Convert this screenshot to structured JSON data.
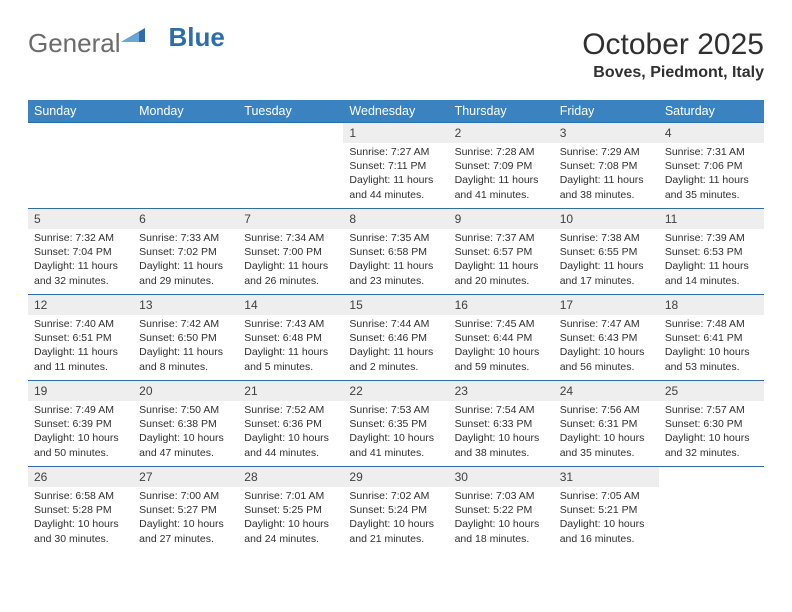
{
  "logo": {
    "text_gray": "General",
    "text_blue": "Blue"
  },
  "title": "October 2025",
  "subtitle": "Boves, Piedmont, Italy",
  "colors": {
    "header_bg": "#3b83c0",
    "header_text": "#ffffff",
    "border": "#2f6da8",
    "daynum_bg": "#eeeeee",
    "logo_gray": "#6b6b6b",
    "logo_blue": "#2f6da8"
  },
  "day_headers": [
    "Sunday",
    "Monday",
    "Tuesday",
    "Wednesday",
    "Thursday",
    "Friday",
    "Saturday"
  ],
  "weeks": [
    [
      {
        "empty": true
      },
      {
        "empty": true
      },
      {
        "empty": true
      },
      {
        "num": "1",
        "sunrise": "7:27 AM",
        "sunset": "7:11 PM",
        "daylight": "11 hours and 44 minutes."
      },
      {
        "num": "2",
        "sunrise": "7:28 AM",
        "sunset": "7:09 PM",
        "daylight": "11 hours and 41 minutes."
      },
      {
        "num": "3",
        "sunrise": "7:29 AM",
        "sunset": "7:08 PM",
        "daylight": "11 hours and 38 minutes."
      },
      {
        "num": "4",
        "sunrise": "7:31 AM",
        "sunset": "7:06 PM",
        "daylight": "11 hours and 35 minutes."
      }
    ],
    [
      {
        "num": "5",
        "sunrise": "7:32 AM",
        "sunset": "7:04 PM",
        "daylight": "11 hours and 32 minutes."
      },
      {
        "num": "6",
        "sunrise": "7:33 AM",
        "sunset": "7:02 PM",
        "daylight": "11 hours and 29 minutes."
      },
      {
        "num": "7",
        "sunrise": "7:34 AM",
        "sunset": "7:00 PM",
        "daylight": "11 hours and 26 minutes."
      },
      {
        "num": "8",
        "sunrise": "7:35 AM",
        "sunset": "6:58 PM",
        "daylight": "11 hours and 23 minutes."
      },
      {
        "num": "9",
        "sunrise": "7:37 AM",
        "sunset": "6:57 PM",
        "daylight": "11 hours and 20 minutes."
      },
      {
        "num": "10",
        "sunrise": "7:38 AM",
        "sunset": "6:55 PM",
        "daylight": "11 hours and 17 minutes."
      },
      {
        "num": "11",
        "sunrise": "7:39 AM",
        "sunset": "6:53 PM",
        "daylight": "11 hours and 14 minutes."
      }
    ],
    [
      {
        "num": "12",
        "sunrise": "7:40 AM",
        "sunset": "6:51 PM",
        "daylight": "11 hours and 11 minutes."
      },
      {
        "num": "13",
        "sunrise": "7:42 AM",
        "sunset": "6:50 PM",
        "daylight": "11 hours and 8 minutes."
      },
      {
        "num": "14",
        "sunrise": "7:43 AM",
        "sunset": "6:48 PM",
        "daylight": "11 hours and 5 minutes."
      },
      {
        "num": "15",
        "sunrise": "7:44 AM",
        "sunset": "6:46 PM",
        "daylight": "11 hours and 2 minutes."
      },
      {
        "num": "16",
        "sunrise": "7:45 AM",
        "sunset": "6:44 PM",
        "daylight": "10 hours and 59 minutes."
      },
      {
        "num": "17",
        "sunrise": "7:47 AM",
        "sunset": "6:43 PM",
        "daylight": "10 hours and 56 minutes."
      },
      {
        "num": "18",
        "sunrise": "7:48 AM",
        "sunset": "6:41 PM",
        "daylight": "10 hours and 53 minutes."
      }
    ],
    [
      {
        "num": "19",
        "sunrise": "7:49 AM",
        "sunset": "6:39 PM",
        "daylight": "10 hours and 50 minutes."
      },
      {
        "num": "20",
        "sunrise": "7:50 AM",
        "sunset": "6:38 PM",
        "daylight": "10 hours and 47 minutes."
      },
      {
        "num": "21",
        "sunrise": "7:52 AM",
        "sunset": "6:36 PM",
        "daylight": "10 hours and 44 minutes."
      },
      {
        "num": "22",
        "sunrise": "7:53 AM",
        "sunset": "6:35 PM",
        "daylight": "10 hours and 41 minutes."
      },
      {
        "num": "23",
        "sunrise": "7:54 AM",
        "sunset": "6:33 PM",
        "daylight": "10 hours and 38 minutes."
      },
      {
        "num": "24",
        "sunrise": "7:56 AM",
        "sunset": "6:31 PM",
        "daylight": "10 hours and 35 minutes."
      },
      {
        "num": "25",
        "sunrise": "7:57 AM",
        "sunset": "6:30 PM",
        "daylight": "10 hours and 32 minutes."
      }
    ],
    [
      {
        "num": "26",
        "sunrise": "6:58 AM",
        "sunset": "5:28 PM",
        "daylight": "10 hours and 30 minutes."
      },
      {
        "num": "27",
        "sunrise": "7:00 AM",
        "sunset": "5:27 PM",
        "daylight": "10 hours and 27 minutes."
      },
      {
        "num": "28",
        "sunrise": "7:01 AM",
        "sunset": "5:25 PM",
        "daylight": "10 hours and 24 minutes."
      },
      {
        "num": "29",
        "sunrise": "7:02 AM",
        "sunset": "5:24 PM",
        "daylight": "10 hours and 21 minutes."
      },
      {
        "num": "30",
        "sunrise": "7:03 AM",
        "sunset": "5:22 PM",
        "daylight": "10 hours and 18 minutes."
      },
      {
        "num": "31",
        "sunrise": "7:05 AM",
        "sunset": "5:21 PM",
        "daylight": "10 hours and 16 minutes."
      },
      {
        "empty": true
      }
    ]
  ],
  "labels": {
    "sunrise": "Sunrise:",
    "sunset": "Sunset:",
    "daylight": "Daylight:"
  }
}
